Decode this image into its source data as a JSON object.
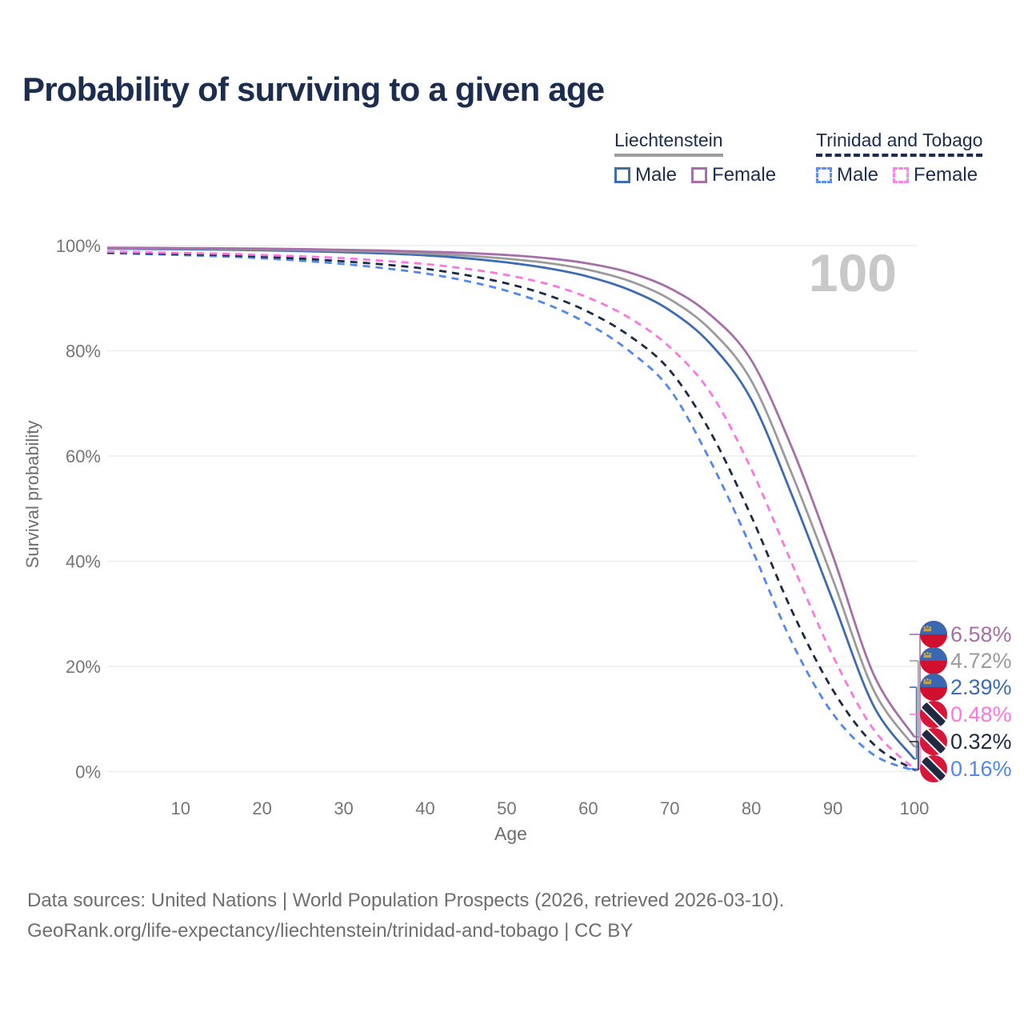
{
  "header": {
    "title": "Probability of surviving to a given age"
  },
  "legend": {
    "groups": [
      {
        "name": "Liechtenstein",
        "underline_style": "solid",
        "underline_color": "#9e9ea0",
        "items": [
          {
            "label": "Male",
            "color": "#3d6cb1",
            "dashed": false
          },
          {
            "label": "Female",
            "color": "#a76fa7",
            "dashed": false
          }
        ]
      },
      {
        "name": "Trinidad and Tobago",
        "underline_style": "dashed",
        "underline_color": "#1c2d4f",
        "items": [
          {
            "label": "Male",
            "color": "#5a8ef2",
            "dashed": true
          },
          {
            "label": "Female",
            "color": "#fb84e4",
            "dashed": true
          }
        ]
      }
    ]
  },
  "chart_data": {
    "type": "line",
    "title": "Probability of surviving to a given age",
    "xlabel": "Age",
    "ylabel": "Survival probability",
    "watermark": "100",
    "xlim": [
      1,
      100
    ],
    "ylim": [
      0,
      100
    ],
    "x_ticks": [
      10,
      20,
      30,
      40,
      50,
      60,
      70,
      80,
      90,
      100
    ],
    "y_tick_values": [
      0,
      20,
      40,
      60,
      80,
      100
    ],
    "y_tick_labels": [
      "0%",
      "20%",
      "40%",
      "60%",
      "80%",
      "100%"
    ],
    "grid": "horizontal-only",
    "legend_position": "top-right",
    "x": [
      1,
      5,
      10,
      15,
      20,
      25,
      30,
      35,
      40,
      45,
      50,
      55,
      60,
      65,
      70,
      75,
      80,
      85,
      90,
      95,
      100
    ],
    "series": [
      {
        "name": "Liechtenstein Female",
        "color": "#a76fa7",
        "dashed": false,
        "flag": "liechtenstein",
        "end_label": "6.58%",
        "end_value": 6.58,
        "values": [
          99.6,
          99.57,
          99.52,
          99.48,
          99.42,
          99.33,
          99.2,
          99.05,
          98.85,
          98.6,
          98.2,
          97.6,
          96.6,
          94.9,
          91.9,
          86.8,
          78.2,
          61.5,
          41,
          18.5,
          6.58
        ]
      },
      {
        "name": "Liechtenstein Both sexes",
        "color": "#9b9b9b",
        "dashed": false,
        "flag": "liechtenstein",
        "end_label": "4.72%",
        "end_value": 4.72,
        "values": [
          99.5,
          99.47,
          99.42,
          99.36,
          99.28,
          99.16,
          99.0,
          98.8,
          98.5,
          98.1,
          97.5,
          96.7,
          95.4,
          93.3,
          89.8,
          84.0,
          74.3,
          56.5,
          36.5,
          15.5,
          4.72
        ]
      },
      {
        "name": "Liechtenstein Male",
        "color": "#3d6cb1",
        "dashed": false,
        "flag": "liechtenstein",
        "end_label": "2.39%",
        "end_value": 2.39,
        "values": [
          99.4,
          99.36,
          99.3,
          99.22,
          99.1,
          98.95,
          98.75,
          98.5,
          98.15,
          97.6,
          96.8,
          95.7,
          94.1,
          91.6,
          87.7,
          81.3,
          70.7,
          52.5,
          32.5,
          12.5,
          2.39
        ]
      },
      {
        "name": "Trinidad and Tobago Female",
        "color": "#fb76e2",
        "dashed": true,
        "flag": "trinidad-and-tobago",
        "end_label": "0.48%",
        "end_value": 0.48,
        "values": [
          98.85,
          98.75,
          98.6,
          98.45,
          98.2,
          97.95,
          97.6,
          97.1,
          96.5,
          95.6,
          94.4,
          92.7,
          90.1,
          86.3,
          80.7,
          72.0,
          57.5,
          39.5,
          22,
          8,
          0.48
        ]
      },
      {
        "name": "Trinidad and Tobago Both sexes",
        "color": "#1d2b47",
        "dashed": true,
        "flag": "trinidad-and-tobago",
        "end_label": "0.32%",
        "end_value": 0.32,
        "values": [
          98.7,
          98.58,
          98.4,
          98.2,
          97.9,
          97.5,
          97.0,
          96.4,
          95.6,
          94.4,
          92.8,
          90.6,
          87.4,
          82.9,
          76.3,
          64.5,
          48.5,
          30.5,
          15.5,
          5.2,
          0.32
        ]
      },
      {
        "name": "Trinidad and Tobago Male",
        "color": "#5088ef",
        "dashed": true,
        "flag": "trinidad-and-tobago",
        "end_label": "0.16%",
        "end_value": 0.16,
        "values": [
          98.55,
          98.42,
          98.2,
          97.95,
          97.6,
          97.1,
          96.5,
          95.7,
          94.7,
          93.3,
          91.4,
          88.8,
          85.1,
          80.0,
          72.7,
          59,
          42.5,
          24.5,
          11,
          3.2,
          0.16
        ]
      }
    ]
  },
  "flag_colors": {
    "liechtenstein_blue": "#3a67b1",
    "liechtenstein_red": "#d11030",
    "liechtenstein_crown": "#c9a23f",
    "tt_red": "#d6173a",
    "tt_black": "#1f2a40",
    "tt_white": "#ffffff"
  },
  "footer": {
    "line1": "Data sources: United Nations | World Population Prospects (2026, retrieved 2026-03-10).",
    "line2": "GeoRank.org/life-expectancy/liechtenstein/trinidad-and-tobago | CC BY"
  }
}
